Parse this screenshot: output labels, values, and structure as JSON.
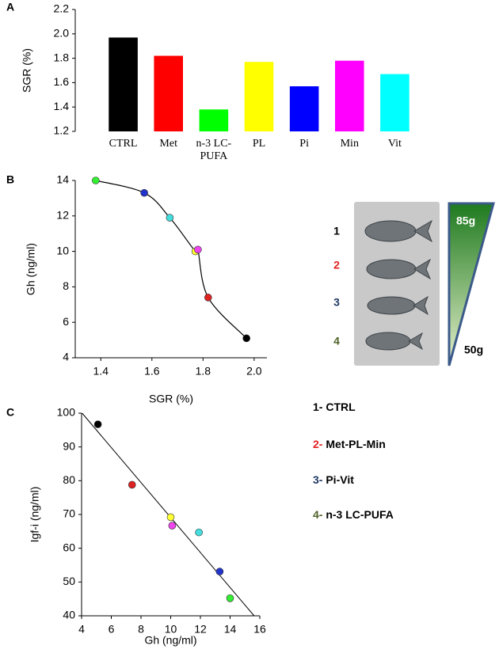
{
  "chart_data": [
    {
      "type": "bar",
      "panel": "A",
      "ylabel": "SGR (%)",
      "categories": [
        "CTRL",
        "Met",
        "n-3 LC-PUFA",
        "PL",
        "Pi",
        "Min",
        "Vit"
      ],
      "values": [
        1.97,
        1.82,
        1.38,
        1.77,
        1.57,
        1.78,
        1.67
      ],
      "colors": [
        "#000000",
        "#ff0000",
        "#00ff00",
        "#ffff00",
        "#0000ff",
        "#ff00ff",
        "#00ffff"
      ],
      "ylim": [
        1.2,
        2.2
      ],
      "yticks": [
        1.2,
        1.4,
        1.6,
        1.8,
        {
          "value": 2,
          "label": "2.0"
        },
        2.2
      ]
    },
    {
      "type": "scatter",
      "panel": "B",
      "xlabel": "SGR (%)",
      "ylabel": "Gh (ng/ml)",
      "trend": "curve",
      "x": [
        1.38,
        1.57,
        1.67,
        1.77,
        1.78,
        1.82,
        1.97
      ],
      "values": [
        14.0,
        13.3,
        11.9,
        10.0,
        10.1,
        7.4,
        5.1
      ],
      "colors": [
        "#33ee33",
        "#2233cc",
        "#44dddd",
        "#ffff33",
        "#ee44ee",
        "#dd2222",
        "#000000"
      ],
      "xlim": [
        1.3,
        2.05
      ],
      "xticks": [
        1.4,
        1.6,
        1.8,
        {
          "value": 2,
          "label": "2.0"
        }
      ],
      "ylim": [
        4,
        14
      ],
      "yticks": [
        4,
        6,
        8,
        10,
        12,
        14
      ]
    },
    {
      "type": "scatter",
      "panel": "C",
      "xlabel": "Gh (ng/ml)",
      "ylabel": "Igf-i (ng/ml)",
      "trend": "linear",
      "x": [
        5.1,
        7.4,
        10.0,
        10.1,
        11.9,
        13.3,
        14.0
      ],
      "values": [
        96.7,
        78.8,
        69.2,
        66.7,
        64.7,
        53.1,
        45.2
      ],
      "colors": [
        "#000000",
        "#dd2222",
        "#ffff33",
        "#ee44ee",
        "#44dddd",
        "#2233cc",
        "#33ee33"
      ],
      "xlim": [
        4,
        16
      ],
      "xticks": [
        4,
        6,
        8,
        10,
        12,
        14,
        16
      ],
      "ylim": [
        40,
        100
      ],
      "yticks": [
        40,
        50,
        60,
        70,
        80,
        90,
        100
      ]
    }
  ],
  "photo": {
    "numbers": [
      {
        "label": "1",
        "color": "#000000"
      },
      {
        "label": "2",
        "color": "#e02020"
      },
      {
        "label": "3",
        "color": "#1f3864"
      },
      {
        "label": "4",
        "color": "#4f6228"
      }
    ],
    "max_weight": "85g",
    "min_weight": "50g"
  },
  "key": [
    {
      "number": "1-",
      "label": "CTRL",
      "color": "#000000"
    },
    {
      "number": "2-",
      "label": "Met-PL-Min",
      "color": "#e02020"
    },
    {
      "number": "3-",
      "label": "Pi-Vit",
      "color": "#1f3864"
    },
    {
      "number": "4-",
      "label": "n-3 LC-PUFA",
      "color": "#4f6228"
    }
  ]
}
